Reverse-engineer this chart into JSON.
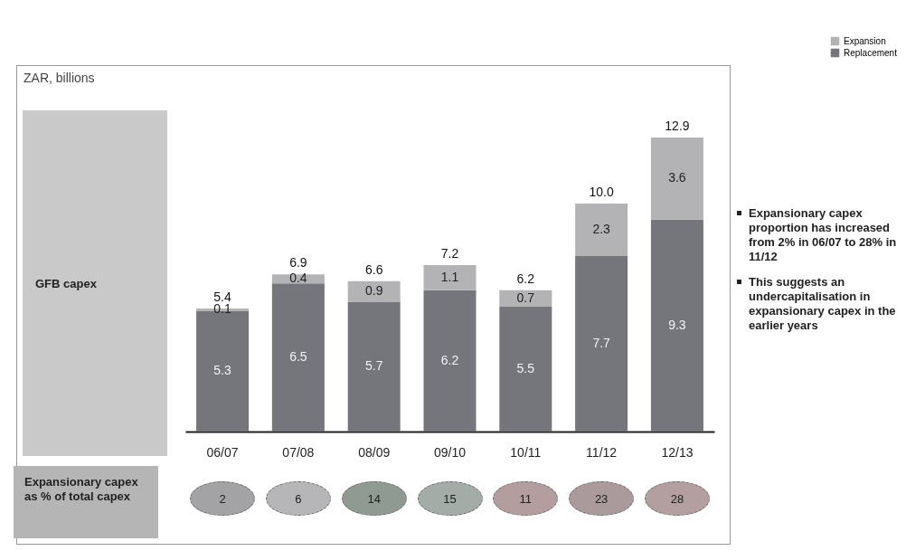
{
  "chart_data": [
    {
      "type": "bar",
      "stacked": true,
      "ylabel": "ZAR, billions",
      "categories": [
        "06/07",
        "07/08",
        "08/09",
        "09/10",
        "10/11",
        "11/12",
        "12/13"
      ],
      "series": [
        {
          "name": "Replacement",
          "color": "#75757c",
          "values": [
            5.3,
            6.5,
            5.7,
            6.2,
            5.5,
            7.7,
            9.3
          ]
        },
        {
          "name": "Expansion",
          "color": "#b3b3b6",
          "values": [
            0.1,
            0.4,
            0.9,
            1.1,
            0.7,
            2.3,
            3.6
          ]
        }
      ],
      "data_labels": true,
      "totals": [
        "5.4",
        "6.9",
        "6.6",
        "7.2",
        "6.2",
        "10.0",
        "12.9"
      ],
      "legend": "top right",
      "annotations": [
        "GFB capex",
        "Expansionary capex proportion has increased from 2% in 06/07 to 28% in 11/12",
        "This suggests an undercapitalisation in expansionary capex in the earlier years"
      ]
    },
    {
      "type": "other",
      "title": "Expansionary capex as % of total capex",
      "categories": [
        null,
        null,
        null,
        null,
        null,
        null,
        null
      ],
      "values": [
        2,
        6,
        14,
        15,
        11,
        23,
        28
      ],
      "colors": [
        "#a3a3a6",
        "#b6b6b8",
        "#8f9a92",
        "#a4aca7",
        "#b39d9e",
        "#ab9a9b",
        "#b39f9f"
      ],
      "data_labels": true
    }
  ]
}
